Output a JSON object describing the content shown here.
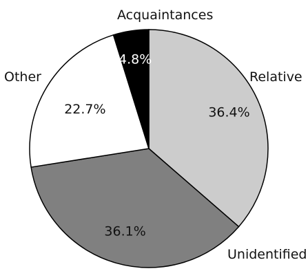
{
  "chart_data": {
    "type": "pie",
    "title": "",
    "start_angle_deg": 0,
    "direction": "clockwise",
    "slices": [
      {
        "label": "Relative",
        "value": 36.4,
        "value_label": "36.4%",
        "color": "#cccccc",
        "value_text_color": "#111111"
      },
      {
        "label": "Unidentified",
        "value": 36.1,
        "value_label": "36.1%",
        "color": "#808080",
        "value_text_color": "#111111"
      },
      {
        "label": "Other",
        "value": 22.7,
        "value_label": "22.7%",
        "color": "#ffffff",
        "value_text_color": "#111111"
      },
      {
        "label": "Acquaintances",
        "value": 4.8,
        "value_label": "4.8%",
        "color": "#000000",
        "value_text_color": "#ffffff"
      }
    ],
    "stroke_color": "#000000",
    "legend": "none"
  }
}
